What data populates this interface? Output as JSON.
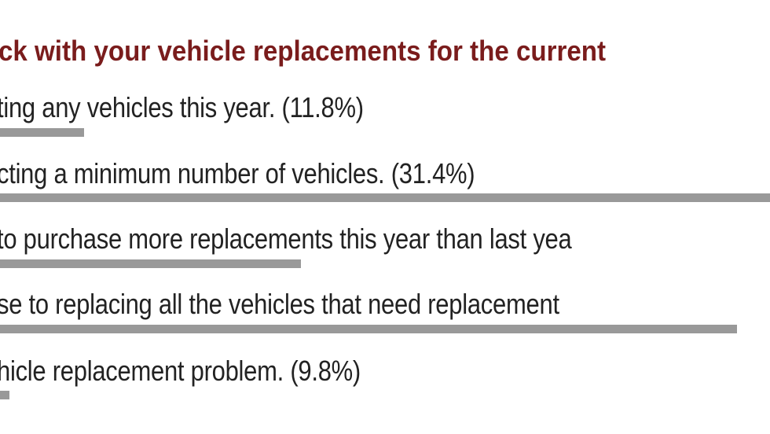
{
  "chart_data": {
    "type": "bar",
    "orientation": "horizontal",
    "title": "ck with your vehicle replacements for the current",
    "options": [
      {
        "label": "ting any vehicles this year. (11.8%)",
        "percent": 11.8
      },
      {
        "label": "cting a minimum number of vehicles. (31.4%)",
        "percent": 31.4
      },
      {
        "label": "to purchase more replacements this year than last yea"
      },
      {
        "label": "se to replacing all the vehicles that need replacement"
      },
      {
        "label": "hicle replacement problem. (9.8%)",
        "percent": 9.8
      }
    ],
    "bar_color": "#999999",
    "title_color": "#7a1c1c"
  }
}
